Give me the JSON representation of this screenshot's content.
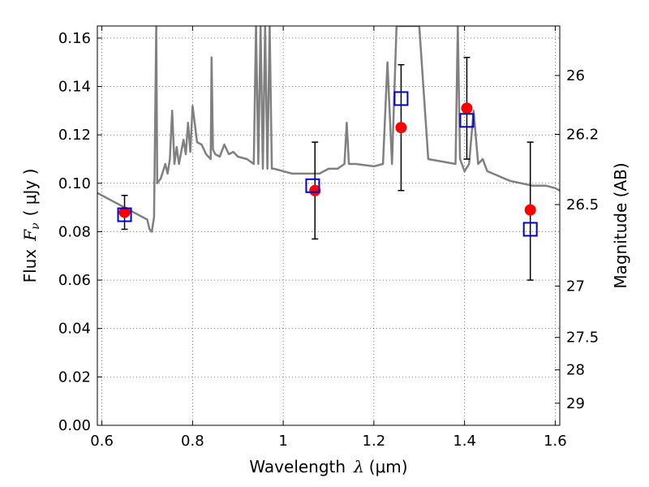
{
  "chart_data": {
    "type": "scatter",
    "title": "",
    "xlabel": {
      "main": "Wavelength",
      "symbol": "λ",
      "unit": "(μm)"
    },
    "ylabel": {
      "main": "Flux",
      "symbol": "F",
      "subscript": "ν",
      "unit": "( μJy )"
    },
    "y2label": "Magnitude (AB)",
    "xlim": [
      0.59,
      1.61
    ],
    "ylim": [
      0.0,
      0.165
    ],
    "grid": true,
    "x_ticks": [
      {
        "value": 0.6,
        "label": "0.6"
      },
      {
        "value": 0.8,
        "label": "0.8"
      },
      {
        "value": 1.0,
        "label": "1"
      },
      {
        "value": 1.2,
        "label": "1.2"
      },
      {
        "value": 1.4,
        "label": "1.4"
      },
      {
        "value": 1.6,
        "label": "1.6"
      }
    ],
    "y_ticks": [
      {
        "value": 0.0,
        "label": "0.00"
      },
      {
        "value": 0.02,
        "label": "0.02"
      },
      {
        "value": 0.04,
        "label": "0.04"
      },
      {
        "value": 0.06,
        "label": "0.06"
      },
      {
        "value": 0.08,
        "label": "0.08"
      },
      {
        "value": 0.1,
        "label": "0.10"
      },
      {
        "value": 0.12,
        "label": "0.12"
      },
      {
        "value": 0.14,
        "label": "0.14"
      },
      {
        "value": 0.16,
        "label": "0.16"
      }
    ],
    "y2_ticks": [
      {
        "value": 26,
        "label": "26"
      },
      {
        "value": 26.2,
        "label": "26.2"
      },
      {
        "value": 26.5,
        "label": "26.5"
      },
      {
        "value": 27,
        "label": "27"
      },
      {
        "value": 27.5,
        "label": "27.5"
      },
      {
        "value": 28,
        "label": "28"
      },
      {
        "value": 29,
        "label": "29"
      }
    ],
    "model_spectrum": {
      "color": "#808080",
      "x": [
        0.59,
        0.62,
        0.66,
        0.7,
        0.705,
        0.71,
        0.715,
        0.72,
        0.722,
        0.73,
        0.74,
        0.745,
        0.75,
        0.755,
        0.76,
        0.765,
        0.77,
        0.78,
        0.785,
        0.79,
        0.795,
        0.8,
        0.81,
        0.82,
        0.83,
        0.84,
        0.842,
        0.845,
        0.85,
        0.86,
        0.87,
        0.88,
        0.89,
        0.9,
        0.92,
        0.935,
        0.94,
        0.945,
        0.95,
        0.955,
        0.96,
        0.965,
        0.97,
        0.975,
        0.98,
        1.0,
        1.02,
        1.05,
        1.08,
        1.1,
        1.12,
        1.135,
        1.14,
        1.145,
        1.16,
        1.2,
        1.22,
        1.23,
        1.24,
        1.25,
        1.27,
        1.3,
        1.32,
        1.35,
        1.38,
        1.385,
        1.39,
        1.4,
        1.41,
        1.42,
        1.43,
        1.44,
        1.45,
        1.5,
        1.55,
        1.58,
        1.6,
        1.61
      ],
      "y": [
        0.096,
        0.093,
        0.089,
        0.085,
        0.081,
        0.08,
        0.086,
        0.165,
        0.1,
        0.102,
        0.108,
        0.104,
        0.11,
        0.13,
        0.108,
        0.115,
        0.108,
        0.118,
        0.112,
        0.125,
        0.113,
        0.132,
        0.117,
        0.116,
        0.112,
        0.11,
        0.152,
        0.114,
        0.112,
        0.111,
        0.116,
        0.112,
        0.113,
        0.111,
        0.11,
        0.108,
        0.165,
        0.108,
        0.165,
        0.106,
        0.165,
        0.106,
        0.165,
        0.106,
        0.106,
        0.105,
        0.104,
        0.104,
        0.104,
        0.106,
        0.106,
        0.108,
        0.125,
        0.108,
        0.108,
        0.107,
        0.108,
        0.15,
        0.108,
        0.165,
        0.165,
        0.165,
        0.11,
        0.109,
        0.108,
        0.165,
        0.11,
        0.105,
        0.108,
        0.13,
        0.108,
        0.11,
        0.105,
        0.101,
        0.099,
        0.099,
        0.098,
        0.097
      ]
    },
    "observed": {
      "color": "#ff0000",
      "x": [
        0.65,
        1.07,
        1.26,
        1.405,
        1.545
      ],
      "y": [
        0.088,
        0.097,
        0.123,
        0.131,
        0.089
      ],
      "yerr_low": [
        0.007,
        0.02,
        0.026,
        0.021,
        0.029
      ],
      "yerr_high": [
        0.007,
        0.02,
        0.026,
        0.021,
        0.028
      ]
    },
    "model_photometry": {
      "color": "#0000cc",
      "x": [
        0.65,
        1.065,
        1.26,
        1.405,
        1.545
      ],
      "y": [
        0.087,
        0.099,
        0.135,
        0.126,
        0.081
      ]
    }
  }
}
